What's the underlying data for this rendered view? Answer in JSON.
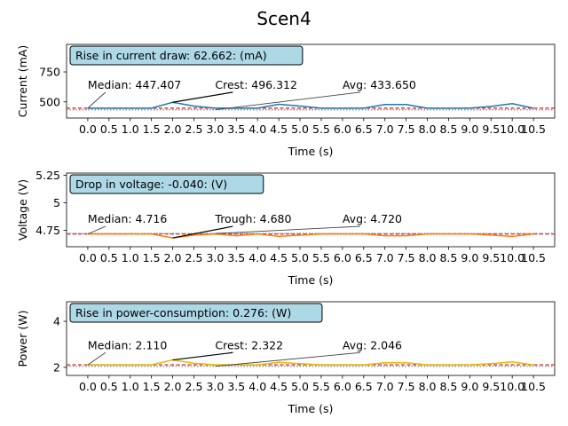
{
  "figure": {
    "title": "Scen4"
  },
  "chart_data": [
    {
      "type": "line",
      "xlabel": "Time (s)",
      "ylabel": "Current (mA)",
      "xlim": [
        -0.5,
        11.0
      ],
      "ylim": [
        365,
        980
      ],
      "yticks": [
        500,
        750
      ],
      "x": [
        0,
        0.5,
        1,
        1.5,
        2,
        2.5,
        3,
        3.5,
        4,
        4.5,
        5,
        5.5,
        6,
        6.5,
        7,
        7.5,
        8,
        8.5,
        9,
        9.5,
        10,
        10.5
      ],
      "series": [
        {
          "color": "#1f77b4",
          "values": [
            447.4,
            447.4,
            447.4,
            447.4,
            496.3,
            465,
            447.4,
            447.4,
            447.4,
            480,
            465,
            447.4,
            447.4,
            447.4,
            478,
            478,
            447.4,
            447.4,
            447.4,
            462,
            485,
            447.4
          ]
        }
      ],
      "median_line": {
        "value": 447.407,
        "color": "#d62728"
      },
      "avg_line": {
        "value": 433.65,
        "color": "#7f7f7f"
      },
      "box_text": "Rise in current draw: 62.662: (mA)",
      "annotations": [
        {
          "text": "Median: 447.407",
          "x": 0.0,
          "y": 447.407,
          "tx": 0.0,
          "ty": 640
        },
        {
          "text": "Crest: 496.312",
          "x": 2.0,
          "y": 496.312,
          "tx": 3.0,
          "ty": 640
        },
        {
          "text": "Avg: 433.650",
          "x": 3.0,
          "y": 433.65,
          "tx": 6.0,
          "ty": 640
        }
      ]
    },
    {
      "type": "line",
      "xlabel": "Time (s)",
      "ylabel": "Voltage (V)",
      "xlim": [
        -0.5,
        11.0
      ],
      "ylim": [
        4.6,
        5.27
      ],
      "yticks": [
        4.75,
        5.0,
        5.25
      ],
      "x": [
        0,
        0.5,
        1,
        1.5,
        2,
        2.5,
        3,
        3.5,
        4,
        4.5,
        5,
        5.5,
        6,
        6.5,
        7,
        7.5,
        8,
        8.5,
        9,
        9.5,
        10,
        10.5
      ],
      "series": [
        {
          "color": "#ff7f0e",
          "values": [
            4.716,
            4.716,
            4.716,
            4.716,
            4.68,
            4.705,
            4.716,
            4.7,
            4.716,
            4.695,
            4.705,
            4.716,
            4.716,
            4.716,
            4.7,
            4.7,
            4.716,
            4.716,
            4.716,
            4.706,
            4.694,
            4.716
          ]
        }
      ],
      "median_line": {
        "value": 4.716,
        "color": "#d62728"
      },
      "avg_line": {
        "value": 4.72,
        "color": "#7f7f7f"
      },
      "box_text": "Drop in voltage: -0.040: (V)",
      "annotations": [
        {
          "text": "Median: 4.716",
          "x": 0.0,
          "y": 4.716,
          "tx": 0.0,
          "ty": 4.85
        },
        {
          "text": "Trough: 4.680",
          "x": 2.0,
          "y": 4.68,
          "tx": 3.0,
          "ty": 4.85
        },
        {
          "text": "Avg: 4.720",
          "x": 3.0,
          "y": 4.72,
          "tx": 6.0,
          "ty": 4.85
        }
      ]
    },
    {
      "type": "line",
      "xlabel": "Time (s)",
      "ylabel": "Power (W)",
      "xlim": [
        -0.5,
        11.0
      ],
      "ylim": [
        1.65,
        4.85
      ],
      "yticks": [
        2,
        4
      ],
      "x": [
        0,
        0.5,
        1,
        1.5,
        2,
        2.5,
        3,
        3.5,
        4,
        4.5,
        5,
        5.5,
        6,
        6.5,
        7,
        7.5,
        8,
        8.5,
        9,
        9.5,
        10,
        10.5
      ],
      "series": [
        {
          "color": "#e8b800",
          "values": [
            2.11,
            2.11,
            2.11,
            2.11,
            2.322,
            2.18,
            2.11,
            2.11,
            2.11,
            2.22,
            2.16,
            2.11,
            2.11,
            2.11,
            2.2,
            2.2,
            2.11,
            2.11,
            2.11,
            2.16,
            2.24,
            2.11
          ]
        }
      ],
      "median_line": {
        "value": 2.11,
        "color": "#d62728"
      },
      "avg_line": {
        "value": 2.046,
        "color": "#7f7f7f"
      },
      "box_text": "Rise in power-consumption: 0.276: (W)",
      "annotations": [
        {
          "text": "Median: 2.110",
          "x": 0.0,
          "y": 2.11,
          "tx": 0.0,
          "ty": 2.95
        },
        {
          "text": "Crest: 2.322",
          "x": 2.0,
          "y": 2.322,
          "tx": 3.0,
          "ty": 2.95
        },
        {
          "text": "Avg: 2.046",
          "x": 3.0,
          "y": 2.046,
          "tx": 6.0,
          "ty": 2.95
        }
      ]
    }
  ]
}
